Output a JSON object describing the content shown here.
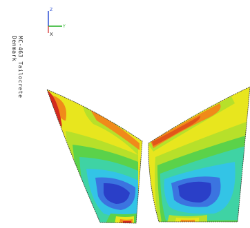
{
  "caption": {
    "line1": "MC-463 Tailocrete",
    "line2": "Denmark"
  },
  "triad": {
    "axis_z": "Z",
    "axis_y": "Y",
    "axis_x": "X"
  },
  "colors": {
    "deep_blue": "#2a3fc8",
    "blue": "#3b74e0",
    "cyan": "#33c4e6",
    "teal": "#3fd3a4",
    "green": "#5bd24a",
    "yellow_green": "#b7e02a",
    "yellow": "#e8e61e",
    "orange": "#f08a1a",
    "red_orange": "#e2551a",
    "red": "#d32a1e"
  }
}
